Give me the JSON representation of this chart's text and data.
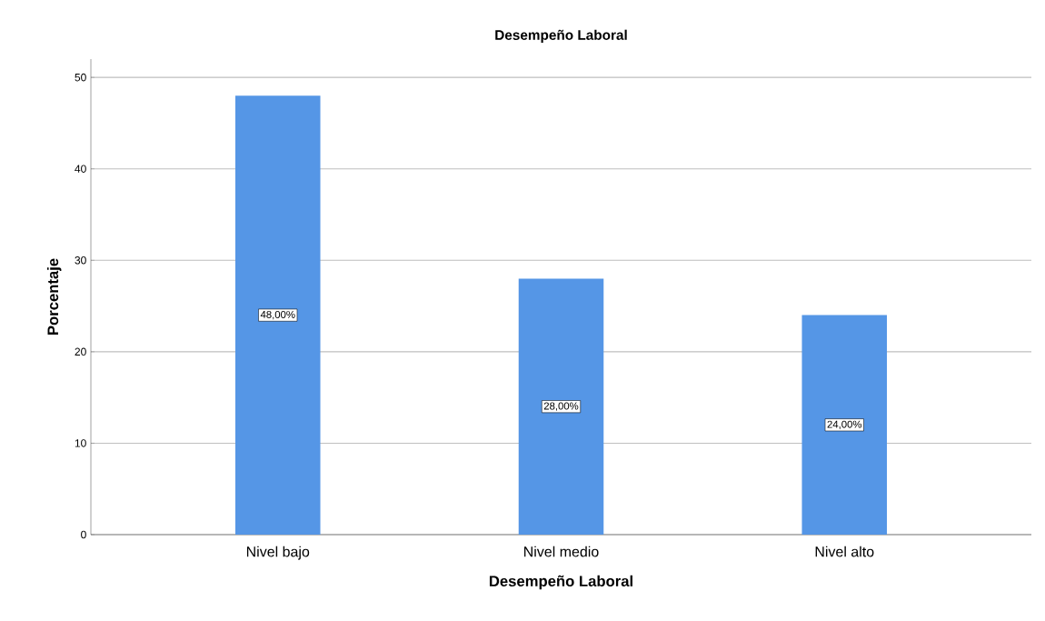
{
  "chart_data": {
    "type": "bar",
    "title": "Desempeño Laboral",
    "xlabel": "Desempeño Laboral",
    "ylabel": "Porcentaje",
    "categories": [
      "Nivel bajo",
      "Nivel medio",
      "Nivel  alto"
    ],
    "values": [
      48,
      28,
      24
    ],
    "color": "#5596e6",
    "value_labels": [
      "48,00%",
      "28,00%",
      "24,00%"
    ],
    "ylim": [
      0,
      52
    ],
    "yticks": [
      0,
      10,
      20,
      30,
      40,
      50
    ],
    "grid": "y"
  }
}
